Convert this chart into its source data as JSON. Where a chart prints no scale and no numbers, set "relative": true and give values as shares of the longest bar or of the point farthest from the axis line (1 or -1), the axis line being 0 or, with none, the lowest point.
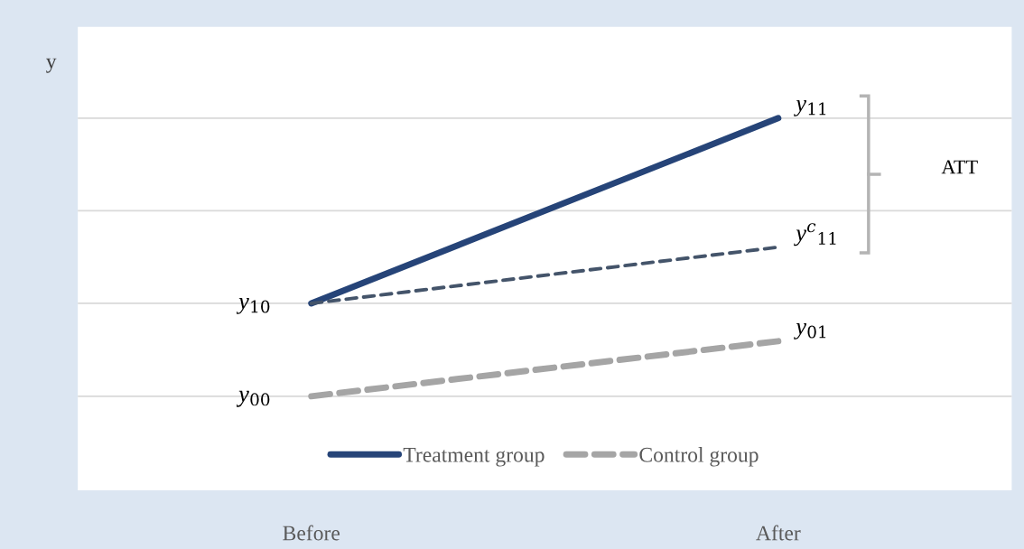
{
  "chart_data": {
    "type": "line",
    "relative": true,
    "ylabel": "y",
    "categories": [
      "Before",
      "After"
    ],
    "series": [
      {
        "name": "Treatment group",
        "color": "#264478",
        "line_style": "solid",
        "values": [
          0.334,
          1
        ]
      },
      {
        "color": "#44546a",
        "line_style": "dotted",
        "values": [
          0.334,
          0.536
        ]
      },
      {
        "name": "Control group",
        "color": "#a5a5a5",
        "line_style": "dashed",
        "values": [
          0,
          0.198
        ]
      }
    ],
    "annotations": [
      {
        "text": "y$_{11}$",
        "x": "After",
        "y": 1
      },
      {
        "text": "y$^{c}$$_{11}$",
        "x": "After",
        "y": 0.536
      },
      {
        "text": "y$_{10}$",
        "x": "Before",
        "y": 0.334
      },
      {
        "text": "y$_{01}$",
        "x": "After",
        "y": 0.198
      },
      {
        "text": "y$_{00}$",
        "x": "Before",
        "y": 0
      },
      "ATT"
    ],
    "ref_lines": [
      {
        "axis": "y",
        "value": 0,
        "color": "#d9d9d9"
      },
      {
        "axis": "y",
        "value": 0.334,
        "color": "#d9d9d9"
      },
      {
        "axis": "y",
        "value": 0.667,
        "color": "#d9d9d9"
      },
      {
        "axis": "y",
        "value": 1,
        "color": "#d9d9d9"
      }
    ],
    "legend": "bottom",
    "marker": "none"
  }
}
